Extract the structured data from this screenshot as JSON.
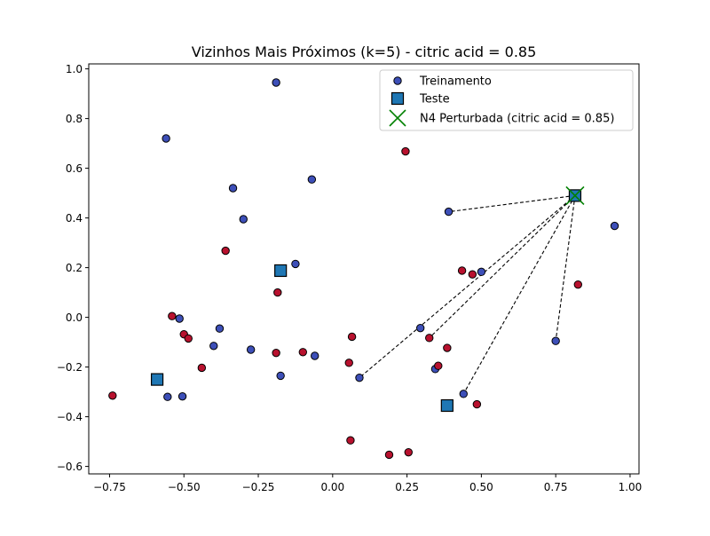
{
  "chart_data": {
    "type": "scatter",
    "title": "Vizinhos Mais Próximos (k=5) - citric acid = 0.85",
    "xlabel": "",
    "ylabel": "",
    "xlim": [
      -0.82,
      1.03
    ],
    "ylim": [
      -0.63,
      1.02
    ],
    "xticks": [
      -0.75,
      -0.5,
      -0.25,
      0.0,
      0.25,
      0.5,
      0.75,
      1.0
    ],
    "yticks": [
      -0.6,
      -0.4,
      -0.2,
      0.0,
      0.2,
      0.4,
      0.6,
      0.8,
      1.0
    ],
    "xtick_labels": [
      "−0.75",
      "−0.50",
      "−0.25",
      "0.00",
      "0.25",
      "0.50",
      "0.75",
      "1.00"
    ],
    "ytick_labels": [
      "−0.6",
      "−0.4",
      "−0.2",
      "0.0",
      "0.2",
      "0.4",
      "0.6",
      "0.8",
      "1.0"
    ],
    "grid": false,
    "legend_position": "top-right",
    "colors": {
      "class_blue": "#3d4fb8",
      "class_red": "#b8112e",
      "test": "#1f77b4",
      "perturbed": "#008000",
      "neighbor_line": "#000000"
    },
    "series": [
      {
        "name": "Treinamento",
        "marker": "circle",
        "points": [
          {
            "x": -0.19,
            "y": 0.945,
            "c": "blue"
          },
          {
            "x": -0.56,
            "y": 0.72,
            "c": "blue"
          },
          {
            "x": -0.335,
            "y": 0.52,
            "c": "blue"
          },
          {
            "x": -0.07,
            "y": 0.555,
            "c": "blue"
          },
          {
            "x": -0.3,
            "y": 0.395,
            "c": "blue"
          },
          {
            "x": -0.125,
            "y": 0.215,
            "c": "blue"
          },
          {
            "x": -0.515,
            "y": -0.005,
            "c": "blue"
          },
          {
            "x": -0.38,
            "y": -0.045,
            "c": "blue"
          },
          {
            "x": -0.4,
            "y": -0.115,
            "c": "blue"
          },
          {
            "x": -0.275,
            "y": -0.13,
            "c": "blue"
          },
          {
            "x": -0.175,
            "y": -0.235,
            "c": "blue"
          },
          {
            "x": -0.06,
            "y": -0.155,
            "c": "blue"
          },
          {
            "x": -0.555,
            "y": -0.32,
            "c": "blue"
          },
          {
            "x": -0.505,
            "y": -0.318,
            "c": "blue"
          },
          {
            "x": 0.09,
            "y": -0.243,
            "c": "blue"
          },
          {
            "x": 0.295,
            "y": -0.043,
            "c": "blue"
          },
          {
            "x": 0.345,
            "y": -0.208,
            "c": "blue"
          },
          {
            "x": 0.39,
            "y": 0.425,
            "c": "blue"
          },
          {
            "x": 0.5,
            "y": 0.183,
            "c": "blue"
          },
          {
            "x": 0.44,
            "y": -0.308,
            "c": "blue"
          },
          {
            "x": 0.75,
            "y": -0.095,
            "c": "blue"
          },
          {
            "x": 0.948,
            "y": 0.368,
            "c": "blue"
          },
          {
            "x": -0.74,
            "y": -0.315,
            "c": "red"
          },
          {
            "x": -0.54,
            "y": 0.005,
            "c": "red"
          },
          {
            "x": -0.5,
            "y": -0.068,
            "c": "red"
          },
          {
            "x": -0.485,
            "y": -0.085,
            "c": "red"
          },
          {
            "x": -0.44,
            "y": -0.203,
            "c": "red"
          },
          {
            "x": -0.36,
            "y": 0.268,
            "c": "red"
          },
          {
            "x": -0.185,
            "y": 0.1,
            "c": "red"
          },
          {
            "x": -0.19,
            "y": -0.143,
            "c": "red"
          },
          {
            "x": -0.1,
            "y": -0.14,
            "c": "red"
          },
          {
            "x": 0.065,
            "y": -0.078,
            "c": "red"
          },
          {
            "x": 0.055,
            "y": -0.183,
            "c": "red"
          },
          {
            "x": 0.06,
            "y": -0.495,
            "c": "red"
          },
          {
            "x": 0.245,
            "y": 0.668,
            "c": "red"
          },
          {
            "x": 0.325,
            "y": -0.083,
            "c": "red"
          },
          {
            "x": 0.385,
            "y": -0.123,
            "c": "red"
          },
          {
            "x": 0.355,
            "y": -0.195,
            "c": "red"
          },
          {
            "x": 0.435,
            "y": 0.188,
            "c": "red"
          },
          {
            "x": 0.47,
            "y": 0.173,
            "c": "red"
          },
          {
            "x": 0.485,
            "y": -0.35,
            "c": "red"
          },
          {
            "x": 0.825,
            "y": 0.132,
            "c": "red"
          },
          {
            "x": 0.19,
            "y": -0.553,
            "c": "red"
          },
          {
            "x": 0.255,
            "y": -0.543,
            "c": "red"
          }
        ]
      },
      {
        "name": "Teste",
        "marker": "square",
        "points": [
          {
            "x": -0.175,
            "y": 0.188
          },
          {
            "x": -0.59,
            "y": -0.25
          },
          {
            "x": 0.385,
            "y": -0.355
          }
        ]
      },
      {
        "name": "N4 Perturbada (citric acid = 0.85)",
        "marker": "x",
        "points": [
          {
            "x": 0.815,
            "y": 0.49
          }
        ]
      }
    ],
    "neighbor_links": {
      "from": {
        "x": 0.815,
        "y": 0.49
      },
      "to": [
        {
          "x": 0.39,
          "y": 0.425
        },
        {
          "x": 0.09,
          "y": -0.243
        },
        {
          "x": 0.325,
          "y": -0.083
        },
        {
          "x": 0.44,
          "y": -0.308
        },
        {
          "x": 0.75,
          "y": -0.095
        }
      ]
    }
  }
}
